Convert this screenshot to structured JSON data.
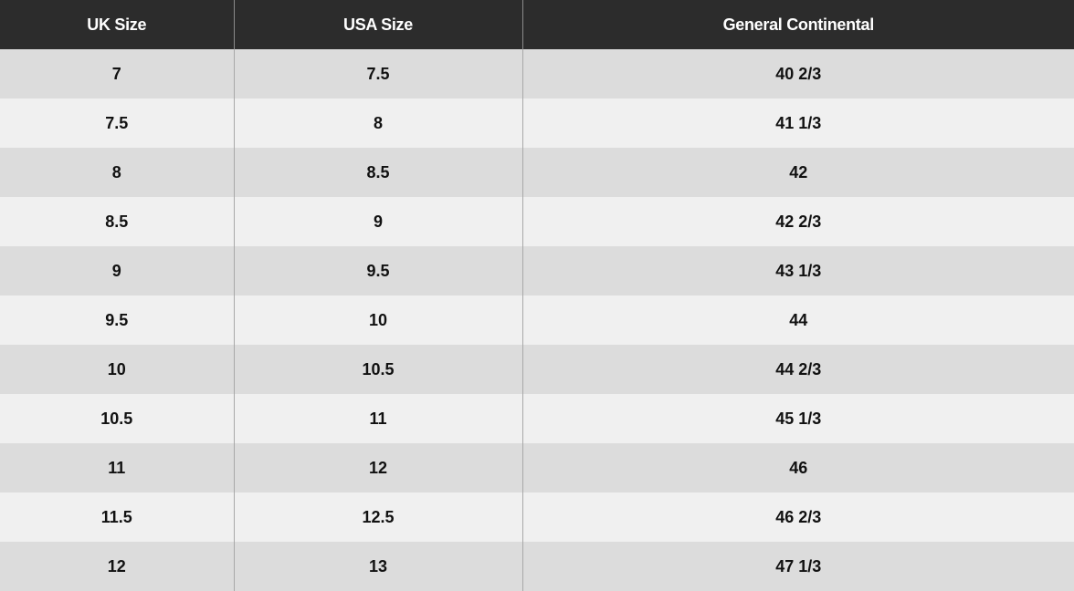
{
  "headers": [
    "UK Size",
    "USA Size",
    "General Continental"
  ],
  "rows": [
    [
      "7",
      "7.5",
      "40 2/3"
    ],
    [
      "7.5",
      "8",
      "41 1/3"
    ],
    [
      "8",
      "8.5",
      "42"
    ],
    [
      "8.5",
      "9",
      "42 2/3"
    ],
    [
      "9",
      "9.5",
      "43 1/3"
    ],
    [
      "9.5",
      "10",
      "44"
    ],
    [
      "10",
      "10.5",
      "44 2/3"
    ],
    [
      "10.5",
      "11",
      "45 1/3"
    ],
    [
      "11",
      "12",
      "46"
    ],
    [
      "11.5",
      "12.5",
      "46 2/3"
    ],
    [
      "12",
      "13",
      "47 1/3"
    ]
  ],
  "colors": {
    "header_bg": "#2c2c2c",
    "header_text": "#ffffff",
    "row_odd": "#dcdcdc",
    "row_even": "#f0f0f0"
  }
}
